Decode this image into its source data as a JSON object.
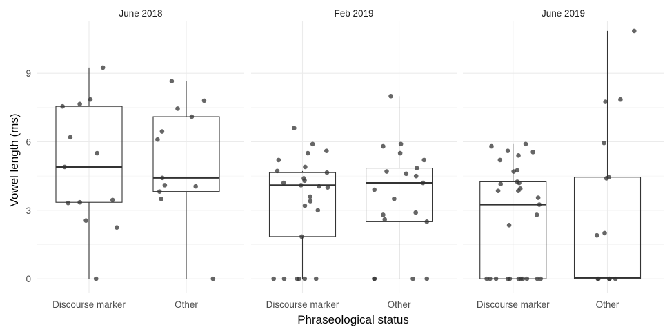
{
  "chart_data": {
    "type": "boxplot",
    "xlabel": "Phraseological status",
    "ylabel": "Vowel length (ms)",
    "ylim": [
      -0.6,
      11.3
    ],
    "yticks": [
      0,
      3,
      6,
      9
    ],
    "categories": [
      "Discourse marker",
      "Other"
    ],
    "grid": true,
    "colors": {
      "point": "#333333",
      "box": "#333333",
      "grid": "#ebebeb"
    },
    "panels": [
      {
        "title": "June 2018",
        "groups": [
          {
            "category": "Discourse marker",
            "box": {
              "min": 0,
              "q1": 3.35,
              "median": 4.9,
              "q3": 7.55,
              "max": 9.25
            },
            "points": [
              9.25,
              7.85,
              7.65,
              7.55,
              6.2,
              5.5,
              4.9,
              3.45,
              3.35,
              3.32,
              2.55,
              2.25,
              0.0
            ]
          },
          {
            "category": "Other",
            "box": {
              "min": 0,
              "q1": 3.82,
              "median": 4.42,
              "q3": 7.1,
              "max": 8.65
            },
            "points": [
              8.65,
              7.8,
              7.45,
              7.1,
              6.45,
              6.1,
              4.42,
              4.1,
              4.05,
              3.82,
              3.5,
              0.0
            ]
          }
        ]
      },
      {
        "title": "Feb 2019",
        "groups": [
          {
            "category": "Discourse marker",
            "box": {
              "min": 0,
              "q1": 1.85,
              "median": 4.1,
              "q3": 4.65,
              "max": 4.72
            },
            "points": [
              6.6,
              5.9,
              5.6,
              5.5,
              5.2,
              4.9,
              4.72,
              4.65,
              4.4,
              4.3,
              4.2,
              4.1,
              4.05,
              4.0,
              3.6,
              3.4,
              3.2,
              3.0,
              1.85,
              0.0,
              0.0,
              0.0,
              0.0,
              0.0,
              0.0
            ]
          },
          {
            "category": "Other",
            "box": {
              "min": 0,
              "q1": 2.5,
              "median": 4.2,
              "q3": 4.85,
              "max": 8.0
            },
            "points": [
              8.0,
              5.9,
              5.8,
              5.5,
              5.2,
              4.85,
              4.7,
              4.6,
              4.5,
              4.2,
              3.9,
              3.5,
              2.9,
              2.8,
              2.6,
              2.5,
              0.0,
              0.0,
              0.0,
              0.0
            ]
          }
        ]
      },
      {
        "title": "June 2019",
        "groups": [
          {
            "category": "Discourse marker",
            "box": {
              "min": 0,
              "q1": 0.0,
              "median": 3.25,
              "q3": 4.25,
              "max": 5.9
            },
            "points": [
              5.9,
              5.8,
              5.6,
              5.55,
              5.4,
              5.2,
              4.75,
              4.7,
              4.25,
              4.2,
              4.15,
              3.95,
              3.85,
              3.85,
              3.55,
              3.25,
              2.8,
              2.35,
              0.0,
              0.0,
              0.0,
              0.0,
              0.0,
              0.0,
              0.0,
              0.0,
              0.0,
              0.0,
              0.0
            ]
          },
          {
            "category": "Other",
            "box": {
              "min": 0,
              "q1": 0.0,
              "median": 0.05,
              "q3": 4.45,
              "max": 10.85
            },
            "points": [
              10.85,
              7.85,
              7.75,
              5.95,
              4.45,
              4.4,
              2.0,
              1.9,
              0.0,
              0.0,
              0.0,
              0.0,
              0.0
            ]
          }
        ]
      }
    ]
  }
}
